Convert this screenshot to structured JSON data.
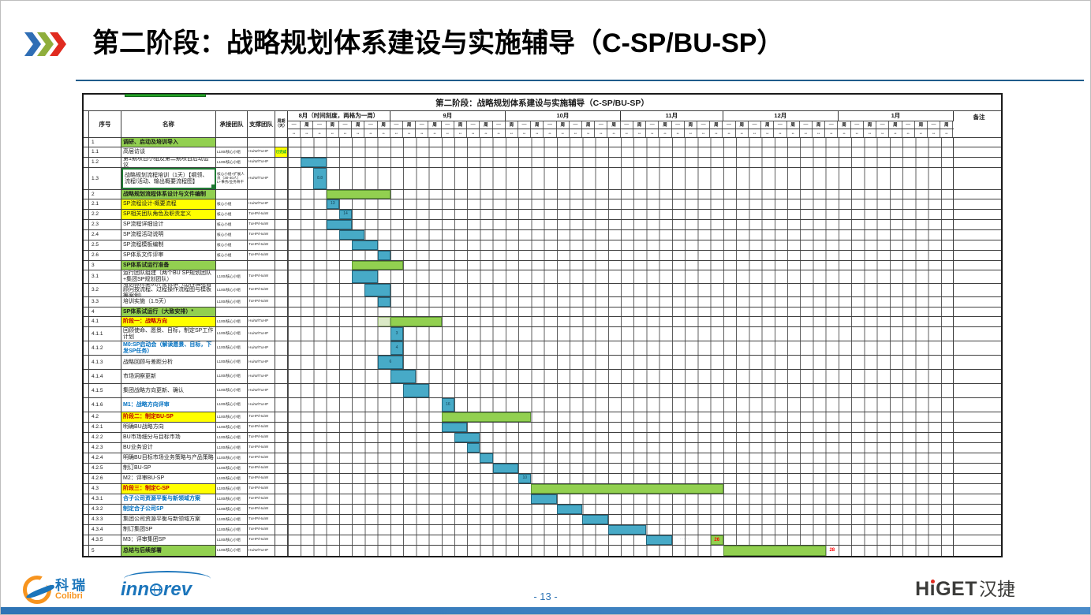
{
  "slide": {
    "title": "第二阶段：战略规划体系建设与实施辅导（C-SP/BU-SP）",
    "page_number": "- 13 -"
  },
  "logos": {
    "colibri_cn": "科瑞",
    "colibri_en": "Colibri",
    "innorev": "innorev",
    "higet_en": "HiGET",
    "higet_cn": "汉捷"
  },
  "table": {
    "title": "第二阶段：战略规划体系建设与实施辅导（C-SP/BU-SP）",
    "columns": {
      "index": "序号",
      "name": "名称",
      "team": "承接团队",
      "support": "支撑团队",
      "duration": "周期（天）",
      "remarks": "备注"
    },
    "months": [
      {
        "label": "8月（时间刻度，两格为一周）",
        "cols": 8
      },
      {
        "label": "9月",
        "cols": 9
      },
      {
        "label": "10月",
        "cols": 9
      },
      {
        "label": "11月",
        "cols": 8
      },
      {
        "label": "12月",
        "cols": 9
      },
      {
        "label": "1月",
        "cols": 9
      }
    ],
    "total_cols": 52,
    "week_mark_odd": "—",
    "week_mark_even": "周",
    "day_mark": "**",
    "rows": [
      {
        "id": "1",
        "name": "调研、启动及培训导入",
        "style": "section",
        "h": 12,
        "team": "",
        "sup": "",
        "bars": []
      },
      {
        "id": "1.1",
        "name": "高层访谈",
        "h": 13,
        "team": "L100/核心小组",
        "sup": "HuiW/TuHP",
        "dur": "已完成",
        "durY": true,
        "bars": []
      },
      {
        "id": "1.2",
        "name": "第1期项目小组及第二期项目启动会议",
        "h": 13,
        "team": "L100/核心小组",
        "sup": "HuiW/TuHP",
        "bars": [
          {
            "c": 2,
            "s": 2,
            "t": "b"
          }
        ]
      },
      {
        "id": "1.3",
        "name": "战略规划流程培训（1天）【纲领、流程/活动、输出概要流程图】",
        "h": 28,
        "sel": true,
        "team": "核心小组+扩展人员（30-40人）L+事务/业务骨干",
        "sup": "HuiW/TuHP",
        "bars": [
          {
            "c": 3,
            "s": 1,
            "t": "b",
            "l": "8.8"
          }
        ]
      },
      {
        "id": "2",
        "name": "战略规划流程体系设计与文件编制",
        "style": "section",
        "h": 12,
        "team": "",
        "sup": "",
        "bars": [
          {
            "c": 4,
            "s": 5,
            "t": "g"
          }
        ]
      },
      {
        "id": "2.1",
        "name": "SP流程设计-概要流程",
        "style": "yellow",
        "h": 13,
        "team": "核心小组",
        "sup": "HuiW/TuHP",
        "bars": [
          {
            "c": 4,
            "s": 1,
            "t": "b",
            "l": "13"
          }
        ]
      },
      {
        "id": "2.2",
        "name": "SP相关团队角色及职责定义",
        "style": "yellow",
        "h": 13,
        "team": "核心小组",
        "sup": "TuHP/HuiW",
        "bars": [
          {
            "c": 5,
            "s": 1,
            "t": "b",
            "l": "14"
          }
        ]
      },
      {
        "id": "2.3",
        "name": "SP流程详细设计",
        "h": 13,
        "team": "核心小组",
        "sup": "TuHP/HuiW",
        "bars": [
          {
            "c": 4,
            "s": 2,
            "t": "b"
          }
        ]
      },
      {
        "id": "2.4",
        "name": "SP流程活动说明",
        "h": 13,
        "team": "核心小组",
        "sup": "TuHP/HuiW",
        "bars": [
          {
            "c": 5,
            "s": 2,
            "t": "b"
          }
        ]
      },
      {
        "id": "2.5",
        "name": "SP流程模板编制",
        "h": 13,
        "team": "核心小组",
        "sup": "TuHP/HuiW",
        "bars": [
          {
            "c": 6,
            "s": 2,
            "t": "b"
          }
        ]
      },
      {
        "id": "2.6",
        "name": "SP体系文件评审",
        "h": 13,
        "team": "核心小组",
        "sup": "TuHP/HuiW",
        "bars": [
          {
            "c": 8,
            "s": 1,
            "t": "b"
          }
        ]
      },
      {
        "id": "3",
        "name": "SP体系试运行准备",
        "style": "section",
        "h": 12,
        "team": "",
        "sup": "",
        "bars": [
          {
            "c": 6,
            "s": 4,
            "t": "g"
          }
        ]
      },
      {
        "id": "3.1",
        "name": "运行团队组建（两个BU SP规划团队+集团SP规划团队）",
        "h": 17,
        "team": "L100/核心小组",
        "sup": "TuHP/HuiW",
        "bars": [
          {
            "c": 6,
            "s": 2,
            "t": "b"
          }
        ]
      },
      {
        "id": "3.2",
        "name": "培训教材案例开发试讲（由科瑞项目顾问按流程、过程操作流程图与模板等案例）",
        "h": 17,
        "team": "L100/核心小组",
        "sup": "TuHP/HuiW",
        "bars": [
          {
            "c": 7,
            "s": 2,
            "t": "b"
          }
        ]
      },
      {
        "id": "3.3",
        "name": "培训实施（1.5天）",
        "h": 13,
        "team": "L100/核心小组",
        "sup": "TuHP/HuiW",
        "bars": [
          {
            "c": 8,
            "s": 1,
            "t": "b"
          }
        ]
      },
      {
        "id": "4",
        "name": "SP体系试运行（大致安排）*",
        "style": "section",
        "h": 12,
        "team": "",
        "sup": "",
        "bars": []
      },
      {
        "id": "4.1",
        "name": "阶段一：战略方向",
        "style": "phase",
        "h": 13,
        "team": "L100/核心小组",
        "sup": "HuiW/TuHP",
        "bars": [
          {
            "c": 8,
            "s": 1,
            "t": "p"
          },
          {
            "c": 9,
            "s": 4,
            "t": "g"
          }
        ]
      },
      {
        "id": "4.1.1",
        "name": "回顾使命、愿景、目标，制定SP工作计划",
        "h": 18,
        "team": "L100/核心小组",
        "sup": "HuiW/TuHP",
        "bars": [
          {
            "c": 9,
            "s": 1,
            "t": "b",
            "l": "3"
          }
        ]
      },
      {
        "id": "4.1.2",
        "name": "M0:SP启动会（解读愿景、目标，下发SP任务）",
        "style": "blue",
        "h": 18,
        "team": "L100/核心小组",
        "sup": "HuiW/TuHP",
        "bars": [
          {
            "c": 9,
            "s": 1,
            "t": "b",
            "l": "4"
          }
        ]
      },
      {
        "id": "4.1.3",
        "name": "战略回顾与差距分析",
        "h": 18,
        "team": "L100/核心小组",
        "sup": "HuiW/TuHP",
        "bars": [
          {
            "c": 8,
            "s": 2,
            "t": "b",
            "l": "6"
          }
        ]
      },
      {
        "id": "4.1.4",
        "name": "市场洞察更新",
        "h": 18,
        "team": "L100/核心小组",
        "sup": "HuiW/TuHP",
        "bars": [
          {
            "c": 9,
            "s": 2,
            "t": "b"
          }
        ]
      },
      {
        "id": "4.1.5",
        "name": "集团战略方向更新、确认",
        "h": 18,
        "team": "L100/核心小组",
        "sup": "HuiW/TuHP",
        "bars": [
          {
            "c": 10,
            "s": 2,
            "t": "b"
          }
        ]
      },
      {
        "id": "4.1.6",
        "name": "M1：战略方向评审",
        "style": "blue",
        "h": 18,
        "team": "L100/核心小组",
        "sup": "HuiW/TuHP",
        "bars": [
          {
            "c": 13,
            "s": 1,
            "t": "b",
            "l": "16"
          }
        ]
      },
      {
        "id": "4.2",
        "name": "阶段二：制定BU-SP",
        "style": "phase",
        "h": 13,
        "team": "L100/核心小组",
        "sup": "TuHP/HuiW",
        "bars": [
          {
            "c": 13,
            "s": 7,
            "t": "g"
          }
        ]
      },
      {
        "id": "4.2.1",
        "name": "明确BU战略方向",
        "h": 13,
        "team": "L100/核心小组",
        "sup": "TuHP/HuiW",
        "bars": [
          {
            "c": 13,
            "s": 2,
            "t": "b"
          }
        ]
      },
      {
        "id": "4.2.2",
        "name": "BU市场细分与目标市场",
        "h": 13,
        "team": "L100/核心小组",
        "sup": "TuHP/HuiW",
        "bars": [
          {
            "c": 14,
            "s": 2,
            "t": "b"
          }
        ]
      },
      {
        "id": "4.2.3",
        "name": "BU业务设计",
        "h": 13,
        "team": "L100/核心小组",
        "sup": "TuHP/HuiW",
        "bars": [
          {
            "c": 15,
            "s": 1,
            "t": "b"
          }
        ]
      },
      {
        "id": "4.2.4",
        "name": "明确BU目标市场业务策略与产品策略",
        "h": 13,
        "team": "L100/核心小组",
        "sup": "TuHP/HuiW",
        "bars": [
          {
            "c": 16,
            "s": 1,
            "t": "b"
          }
        ]
      },
      {
        "id": "4.2.5",
        "name": "制订BU-SP",
        "h": 13,
        "team": "L100/核心小组",
        "sup": "TuHP/HuiW",
        "bars": [
          {
            "c": 17,
            "s": 2,
            "t": "b"
          }
        ]
      },
      {
        "id": "4.2.6",
        "name": "M2：评审BU-SP",
        "h": 13,
        "team": "L100/核心小组",
        "sup": "TuHP/HuiW",
        "bars": [
          {
            "c": 19,
            "s": 1,
            "t": "b",
            "l": "10"
          }
        ]
      },
      {
        "id": "4.3",
        "name": "阶段三：制定C-SP",
        "style": "phase",
        "h": 13,
        "team": "L100/核心小组",
        "sup": "TuHP/HuiW",
        "bars": [
          {
            "c": 20,
            "s": 15,
            "t": "g"
          }
        ]
      },
      {
        "id": "4.3.1",
        "name": "合子公司资源平衡与新领域方案",
        "style": "blue",
        "h": 13,
        "team": "L100/核心小组",
        "sup": "TuHP/HuiW",
        "bars": [
          {
            "c": 20,
            "s": 2,
            "t": "b"
          }
        ]
      },
      {
        "id": "4.3.2",
        "name": "制定合子公司SP",
        "style": "blue",
        "h": 13,
        "team": "L100/核心小组",
        "sup": "TuHP/HuiW",
        "bars": [
          {
            "c": 22,
            "s": 2,
            "t": "b"
          }
        ]
      },
      {
        "id": "4.3.3",
        "name": "集团公司资源平衡与新领域方案",
        "h": 13,
        "team": "L100/核心小组",
        "sup": "TuHP/HuiW",
        "bars": [
          {
            "c": 24,
            "s": 2,
            "t": "b"
          }
        ]
      },
      {
        "id": "4.3.4",
        "name": "制订集团SP",
        "h": 13,
        "team": "L100/核心小组",
        "sup": "TuHP/HuiW",
        "bars": [
          {
            "c": 26,
            "s": 3,
            "t": "b"
          }
        ]
      },
      {
        "id": "4.3.5",
        "name": "M3：评审集团SP",
        "h": 13,
        "team": "L100/核心小组",
        "sup": "TuHP/HuiW",
        "bars": [
          {
            "c": 29,
            "s": 2,
            "t": "b"
          },
          {
            "c": 31,
            "s": 2,
            "t": "d",
            "l": "·····"
          },
          {
            "c": 34,
            "s": 1,
            "t": "g",
            "l": "26",
            "lc": "r"
          }
        ]
      },
      {
        "id": "5",
        "name": "总结与后续部署",
        "style": "section",
        "h": 13,
        "team": "L100/核心小组",
        "sup": "HuiW/TuHP",
        "bars": [
          {
            "c": 35,
            "s": 8,
            "t": "g"
          },
          {
            "c": 43,
            "s": 1,
            "t": "t",
            "l": "28",
            "lc": "r"
          }
        ]
      }
    ]
  }
}
